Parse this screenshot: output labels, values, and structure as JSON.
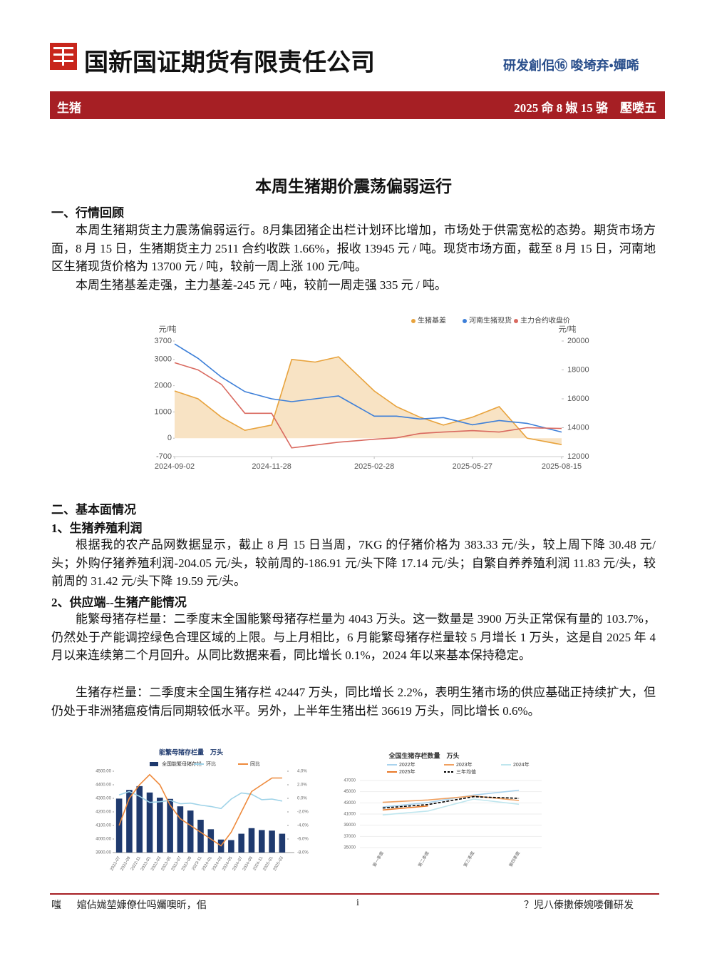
{
  "header": {
    "company": "国新国证期货有限责任公司",
    "slogan": "研发創佀⑯ 唆埼弃•嬋唏"
  },
  "banner": {
    "left": "生猪",
    "right": "2025 命 8 婌 15 骆　壓喽五"
  },
  "title": "本周生猪期价震荡偏弱运行",
  "sections": [
    {
      "heading": "一、行情回顾",
      "paragraphs": [
        "本周生猪期货主力震荡偏弱运行。8月集团猪企出栏计划环比增加，市场处于供需宽松的态势。期货市场方面，8 月 15 日，生猪期货主力 2511 合约收跌 1.66%，报收 13945 元 / 吨。现货市场方面，截至 8 月 15 日，河南地区生猪现货价格为 13700 元 / 吨，较前一周上涨 100 元/吨。",
        "本周生猪基差走强，主力基差-245 元 / 吨，较前一周走强 335 元 / 吨。"
      ]
    },
    {
      "heading": "二、基本面情况",
      "subsections": [
        {
          "heading": "1、生猪养殖利润",
          "paragraphs": [
            "根据我的农产品网数据显示，截止 8 月 15 日当周，7KG 的仔猪价格为 383.33 元/头，较上周下降 30.48 元/头；外购仔猪养殖利润-204.05 元/头，较前周的-186.91 元/头下降 17.14 元/头；自繁自养养殖利润 11.83 元/头，较前周的 31.42 元/头下降 19.59 元/头。"
          ]
        },
        {
          "heading": "2、供应端--生猪产能情况",
          "paragraphs": [
            "能繁母猪存栏量：二季度末全国能繁母猪存栏量为 4043 万头。这一数量是 3900 万头正常保有量的 103.7%，仍然处于产能调控绿色合理区域的上限。与上月相比，6 月能繁母猪存栏量较 5 月增长 1 万头，这是自 2025 年 4 月以来连续第二个月回升。从同比数据来看，同比增长 0.1%，2024 年以来基本保持稳定。",
            "生猪存栏量：二季度末全国生猪存栏 42447 万头，同比增长 2.2%，表明生猪市场的供应基础正持续扩大，但仍处于非洲猪瘟疫情后同期较低水平。另外，上半年生猪出栏 36619 万头，同比增长 0.6%。"
          ]
        }
      ]
    }
  ],
  "chart_data": [
    {
      "type": "line",
      "ylabel": "元/吨",
      "y2label": "元/吨",
      "x": [
        "2024-09-02",
        "2024-09-23",
        "2024-10-14",
        "2024-11-04",
        "2024-11-28",
        "2024-12-16",
        "2025-01-06",
        "2025-01-27",
        "2025-02-28",
        "2025-03-20",
        "2025-04-10",
        "2025-05-01",
        "2025-05-27",
        "2025-06-20",
        "2025-07-15",
        "2025-08-15"
      ],
      "xlim": [
        "2024-09-02",
        "2025-08-15"
      ],
      "xticks": [
        "2024-09-02",
        "2024-11-28",
        "2025-02-28",
        "2025-05-27",
        "2025-08-15"
      ],
      "ylim": [
        -700,
        3700
      ],
      "yticks": [
        -700,
        0,
        1000,
        2000,
        3000,
        3700
      ],
      "y2lim": [
        12000,
        20000
      ],
      "y2ticks": [
        12000,
        14000,
        16000,
        18000,
        20000
      ],
      "series": [
        {
          "name": "生猪基差",
          "color": "#e8a33d",
          "area": true,
          "values": [
            1800,
            1500,
            800,
            300,
            500,
            3000,
            2900,
            3100,
            1800,
            1200,
            800,
            500,
            800,
            1200,
            0,
            -245
          ]
        },
        {
          "name": "河南生猪现货",
          "color": "#3d7fd8",
          "axis": "y2",
          "values": [
            19800,
            18800,
            17500,
            16500,
            16000,
            15800,
            16000,
            16200,
            14800,
            14800,
            14600,
            14700,
            14200,
            14500,
            14300,
            13700
          ]
        },
        {
          "name": "主力合约收盘价",
          "color": "#d9695f",
          "axis": "y2",
          "values": [
            18500,
            18000,
            17000,
            15000,
            15000,
            12600,
            12800,
            13000,
            13200,
            13300,
            13600,
            13700,
            13800,
            13700,
            14000,
            13945
          ]
        }
      ]
    },
    {
      "type": "bar-line",
      "title": "能繁母猪存栏量　万头",
      "categories": [
        "2022-07",
        "2022-09",
        "2022-11",
        "2023-01",
        "2023-03",
        "2023-05",
        "2023-07",
        "2023-09",
        "2023-11",
        "2024-01",
        "2024-03",
        "2024-05",
        "2024-07",
        "2024-09",
        "2024-11",
        "2025-01",
        "2025-03"
      ],
      "ylim": [
        3900,
        4500
      ],
      "yticks": [
        {
          "value": 3900,
          "label": "3900.00"
        },
        {
          "value": 4000,
          "label": "4000.00"
        },
        {
          "value": 4100,
          "label": "4100.00"
        },
        {
          "value": 4200,
          "label": "4200.00"
        },
        {
          "value": 4300,
          "label": "4300.00"
        },
        {
          "value": 4400,
          "label": "4400.00"
        },
        {
          "value": 4500,
          "label": "4500.00"
        }
      ],
      "y2lim": [
        -8,
        4
      ],
      "y2ticks": [
        {
          "value": -8,
          "label": "-8.0%"
        },
        {
          "value": -6,
          "label": "-6.0%"
        },
        {
          "value": -4,
          "label": "-4.0%"
        },
        {
          "value": -2,
          "label": "-2.0%"
        },
        {
          "value": 0,
          "label": "0.0%"
        },
        {
          "value": 2,
          "label": "2.0%"
        },
        {
          "value": 4,
          "label": "4.0%"
        }
      ],
      "series": [
        {
          "name": "全国能繁母猪存栏",
          "color": "#1f3a6e",
          "kind": "bar",
          "values": [
            4298,
            4362,
            4390,
            4343,
            4305,
            4296,
            4241,
            4210,
            4142,
            4072,
            3996,
            3992,
            4039,
            4080,
            4066,
            4062,
            4039
          ]
        },
        {
          "name": "环比",
          "color": "#9fd3e8",
          "axis": "y2",
          "values": [
            0.5,
            1.0,
            0.3,
            -0.6,
            -0.5,
            -0.3,
            -0.8,
            -0.7,
            -1.0,
            -1.2,
            -1.5,
            -0.1,
            0.8,
            0.6,
            -0.2,
            -0.1,
            -0.4
          ]
        },
        {
          "name": "同比",
          "color": "#ee8a3c",
          "axis": "y2",
          "values": [
            -4,
            0,
            2,
            3.5,
            2,
            -1,
            -3,
            -4,
            -5,
            -6,
            -7,
            -5,
            -2,
            1,
            2,
            3,
            3
          ]
        }
      ]
    },
    {
      "type": "line",
      "title": "全国生猪存栏数量　万头",
      "categories": [
        "第一季度",
        "第二季度",
        "第三季度",
        "第四季度"
      ],
      "ylim": [
        35000,
        47000
      ],
      "yticks": [
        35000,
        37000,
        39000,
        41000,
        43000,
        45000,
        47000
      ],
      "series": [
        {
          "name": "2022年",
          "color": "#a9d3ee",
          "values": [
            42253,
            43057,
            44394,
            45256
          ]
        },
        {
          "name": "2023年",
          "color": "#f0a060",
          "values": [
            43094,
            43517,
            44229,
            43422
          ]
        },
        {
          "name": "2024年",
          "color": "#bfe6ee",
          "values": [
            40850,
            41533,
            43680,
            42743
          ]
        },
        {
          "name": "2025年",
          "color": "#e87a2a",
          "values": [
            41731,
            42447,
            null,
            null
          ]
        },
        {
          "name": "三年均值",
          "color": "#000000",
          "dash": true,
          "values": [
            42066,
            42702,
            44101,
            43807
          ]
        }
      ]
    }
  ],
  "footer": {
    "left": "嗤堰⃛婠佔娏堃嫝僚仕吗孎噢昕，佀",
    "center": "i",
    "right": "？児八傣擻傣婉喽儺研发"
  }
}
